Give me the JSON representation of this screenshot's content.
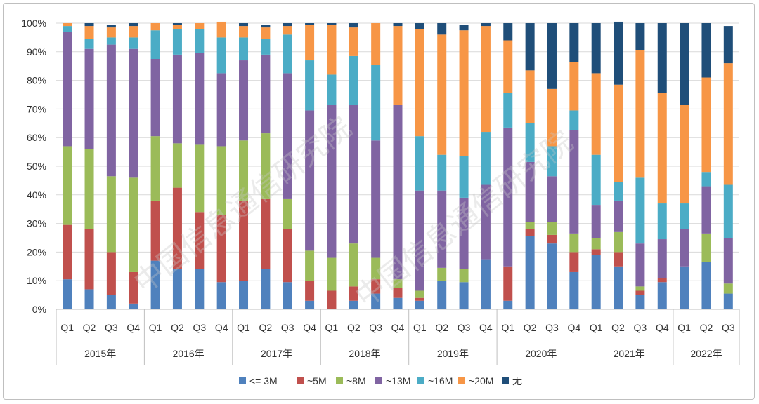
{
  "chart_data": {
    "type": "bar",
    "stacked": true,
    "percent": true,
    "title": "",
    "xlabel": "",
    "ylabel": "",
    "ylim": [
      0,
      100
    ],
    "yticks": [
      "0%",
      "10%",
      "20%",
      "30%",
      "40%",
      "50%",
      "60%",
      "70%",
      "80%",
      "90%",
      "100%"
    ],
    "categories": [
      "2015年 Q1",
      "2015年 Q2",
      "2015年 Q3",
      "2015年 Q4",
      "2016年 Q1",
      "2016年 Q2",
      "2016年 Q3",
      "2016年 Q4",
      "2017年 Q1",
      "2017年 Q2",
      "2017年 Q3",
      "2017年 Q4",
      "2018年 Q1",
      "2018年 Q2",
      "2018年 Q3",
      "2018年 Q4",
      "2019年 Q1",
      "2019年 Q2",
      "2019年 Q3",
      "2019年 Q4",
      "2020年 Q1",
      "2020年 Q2",
      "2020年 Q3",
      "2020年 Q4",
      "2021年 Q1",
      "2021年 Q2",
      "2021年 Q3",
      "2021年 Q4",
      "2022年 Q1",
      "2022年 Q2",
      "2022年 Q3"
    ],
    "quarter_labels": [
      "Q1",
      "Q2",
      "Q3",
      "Q4",
      "Q1",
      "Q2",
      "Q3",
      "Q4",
      "Q1",
      "Q2",
      "Q3",
      "Q4",
      "Q1",
      "Q2",
      "Q3",
      "Q4",
      "Q1",
      "Q2",
      "Q3",
      "Q4",
      "Q1",
      "Q2",
      "Q3",
      "Q4",
      "Q1",
      "Q2",
      "Q3",
      "Q4",
      "Q1",
      "Q2",
      "Q3"
    ],
    "groups": [
      {
        "label": "2015年",
        "count": 4
      },
      {
        "label": "2016年",
        "count": 4
      },
      {
        "label": "2017年",
        "count": 4
      },
      {
        "label": "2018年",
        "count": 4
      },
      {
        "label": "2019年",
        "count": 4
      },
      {
        "label": "2020年",
        "count": 4
      },
      {
        "label": "2021年",
        "count": 4
      },
      {
        "label": "2022年",
        "count": 3
      }
    ],
    "series": [
      {
        "name": "<= 3M",
        "color": "#4f81bd",
        "values": [
          10.5,
          7,
          5,
          2,
          17,
          14,
          14,
          9.5,
          10,
          14,
          9.5,
          3,
          0,
          3,
          5.5,
          4,
          3,
          10,
          9.5,
          17.5,
          3,
          25.5,
          23,
          13,
          19,
          15,
          5,
          9.5,
          15,
          16.5,
          5.5
        ]
      },
      {
        "name": "~5M",
        "color": "#c0504d",
        "values": [
          19,
          21,
          15,
          11,
          21,
          28.5,
          20,
          23.5,
          28,
          24.5,
          18.5,
          7,
          6.5,
          5,
          5,
          3.5,
          1,
          0,
          0,
          0,
          12,
          2.5,
          3,
          7,
          2,
          5,
          1.5,
          1.5,
          0,
          0,
          0
        ]
      },
      {
        "name": "~8M",
        "color": "#9bbb59",
        "values": [
          27.5,
          28,
          26.5,
          33,
          22.5,
          15.5,
          23.5,
          24,
          21,
          23,
          10.5,
          10.5,
          11.5,
          15,
          7.5,
          3,
          2.5,
          4.5,
          4.5,
          0,
          0,
          2.5,
          4.5,
          6.5,
          4,
          7,
          1.5,
          0,
          0,
          10,
          3.5
        ]
      },
      {
        "name": "~13M",
        "color": "#8064a2",
        "values": [
          40,
          35,
          46,
          45,
          27,
          31,
          32,
          25.5,
          28,
          27.5,
          44,
          49,
          53.5,
          48.5,
          41,
          61,
          35,
          27,
          25,
          26,
          48.5,
          21,
          16,
          36,
          11.5,
          11,
          15,
          13.5,
          13,
          16.5,
          16
        ]
      },
      {
        "name": "~16M",
        "color": "#4bacc6",
        "values": [
          2,
          3.5,
          2.5,
          4,
          10,
          9,
          8.5,
          12.5,
          8,
          5.5,
          13.5,
          17.5,
          10.5,
          17,
          26.5,
          0,
          19,
          12.5,
          14.5,
          18.5,
          12,
          13.5,
          10.5,
          7,
          17.5,
          6.5,
          23,
          12.5,
          9,
          5,
          18.5
        ]
      },
      {
        "name": "~20M",
        "color": "#f79646",
        "values": [
          1,
          4.5,
          3.5,
          4,
          2.5,
          1.5,
          2,
          5.5,
          4,
          4,
          3,
          12.5,
          17.5,
          10,
          14.5,
          27.5,
          37.5,
          42,
          44,
          37,
          18.5,
          18.5,
          20,
          17,
          28.5,
          34,
          44.5,
          38.5,
          34.5,
          33,
          42.5
        ]
      },
      {
        "name": "无",
        "color": "#1f4e79",
        "values": [
          0,
          1,
          1,
          1,
          0,
          0.5,
          0,
          0,
          1,
          1,
          1,
          0.5,
          0.5,
          1.5,
          0,
          1,
          2,
          4,
          2,
          1,
          6,
          16.5,
          23,
          13.5,
          17.5,
          22,
          9.5,
          24.5,
          28.5,
          19,
          13
        ]
      }
    ],
    "legend_position": "bottom",
    "grid": true
  },
  "watermark": {
    "text": "中国信息通信研究院"
  }
}
